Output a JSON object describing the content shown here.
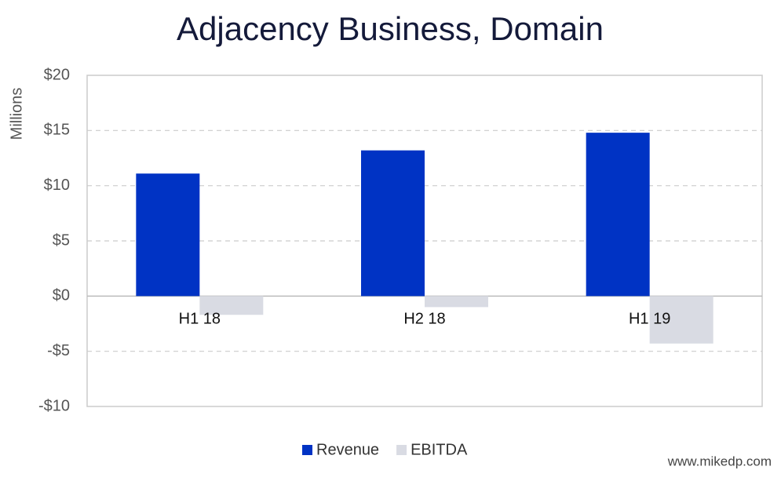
{
  "chart_data": {
    "type": "bar",
    "title": "Adjacency Business, Domain",
    "y_label": "Millions",
    "categories": [
      "H1 18",
      "H2 18",
      "H1 19"
    ],
    "series": [
      {
        "name": "Revenue",
        "color": "#0033c4",
        "values": [
          11.1,
          13.2,
          14.8
        ]
      },
      {
        "name": "EBITDA",
        "color": "#d9dbe3",
        "values": [
          -1.7,
          -1.0,
          -4.3
        ]
      }
    ],
    "ylim": [
      -10,
      20
    ],
    "yticks": [
      {
        "value": -10,
        "label": "-$10"
      },
      {
        "value": -5,
        "label": "-$5"
      },
      {
        "value": 0,
        "label": "$0"
      },
      {
        "value": 5,
        "label": "$5"
      },
      {
        "value": 10,
        "label": "$10"
      },
      {
        "value": 15,
        "label": "$15"
      },
      {
        "value": 20,
        "label": "$20"
      }
    ],
    "grid": true,
    "legend": "bottom",
    "watermark": "www.mikedp.com"
  }
}
